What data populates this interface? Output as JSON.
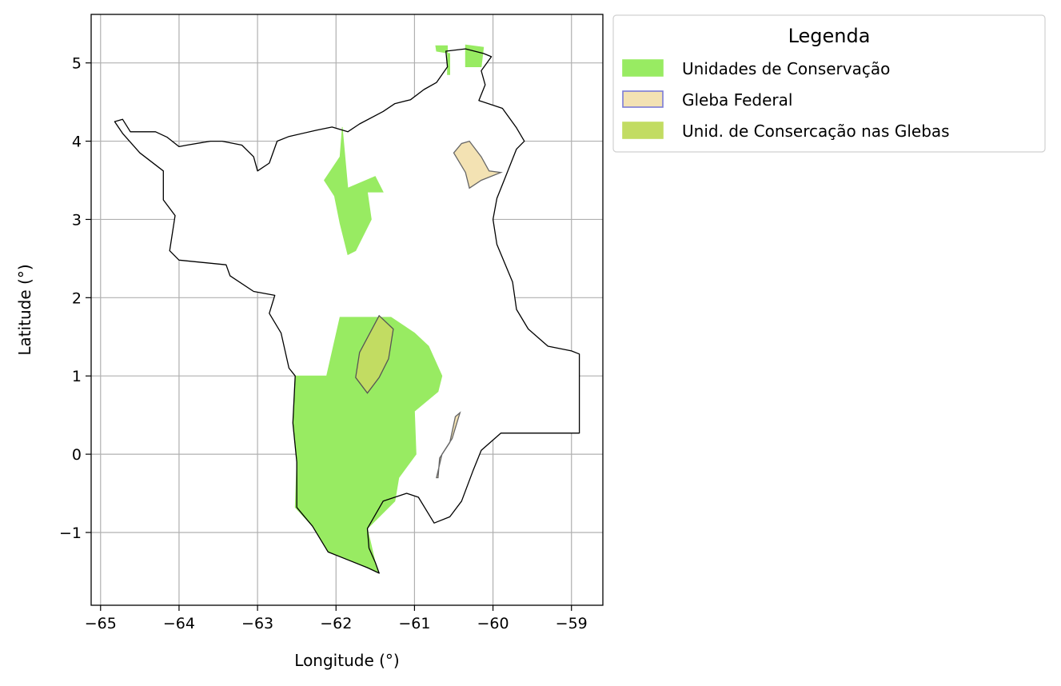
{
  "chart_data": {
    "type": "map",
    "xlabel": "Longitude (°)",
    "ylabel": "Latitude (°)",
    "xlim": [
      -65.12,
      -58.6
    ],
    "ylim": [
      -1.93,
      5.62
    ],
    "xticks": [
      -65,
      -64,
      -63,
      -62,
      -61,
      -60,
      -59
    ],
    "yticks": [
      -1,
      0,
      1,
      2,
      3,
      4,
      5
    ],
    "grid": true,
    "legend": {
      "title": "Legenda",
      "placement": "outside-upper-right",
      "entries": [
        {
          "label": "Unidades de Conservação",
          "fill": "#98eb62",
          "edge": "#98eb62"
        },
        {
          "label": "Gleba Federal",
          "fill": "#f3e2b3",
          "edge": "#7b7bd6"
        },
        {
          "label": "Unid. de Consercação nas Glebas",
          "fill": "#c2dc62",
          "edge": "#c2dc62"
        }
      ]
    },
    "layers": {
      "state_outline": [
        [
          -64.82,
          4.25
        ],
        [
          -64.72,
          4.28
        ],
        [
          -64.62,
          4.12
        ],
        [
          -64.3,
          4.12
        ],
        [
          -64.15,
          4.05
        ],
        [
          -64.0,
          3.93
        ],
        [
          -63.9,
          3.95
        ],
        [
          -63.6,
          4.0
        ],
        [
          -63.45,
          4.0
        ],
        [
          -63.2,
          3.95
        ],
        [
          -63.05,
          3.8
        ],
        [
          -63.0,
          3.62
        ],
        [
          -62.85,
          3.72
        ],
        [
          -62.75,
          4.0
        ],
        [
          -62.6,
          4.06
        ],
        [
          -62.25,
          4.14
        ],
        [
          -62.05,
          4.18
        ],
        [
          -61.85,
          4.12
        ],
        [
          -61.7,
          4.22
        ],
        [
          -61.4,
          4.38
        ],
        [
          -61.25,
          4.48
        ],
        [
          -61.05,
          4.53
        ],
        [
          -60.88,
          4.66
        ],
        [
          -60.72,
          4.75
        ],
        [
          -60.58,
          4.95
        ],
        [
          -60.6,
          5.15
        ],
        [
          -60.35,
          5.18
        ],
        [
          -60.12,
          5.12
        ],
        [
          -60.02,
          5.08
        ],
        [
          -60.15,
          4.9
        ],
        [
          -60.1,
          4.72
        ],
        [
          -60.18,
          4.52
        ],
        [
          -59.88,
          4.42
        ],
        [
          -59.7,
          4.17
        ],
        [
          -59.6,
          4.0
        ],
        [
          -59.7,
          3.9
        ],
        [
          -59.85,
          3.52
        ],
        [
          -59.95,
          3.27
        ],
        [
          -60.0,
          3.0
        ],
        [
          -59.95,
          2.68
        ],
        [
          -59.75,
          2.2
        ],
        [
          -59.7,
          1.85
        ],
        [
          -59.55,
          1.6
        ],
        [
          -59.3,
          1.38
        ],
        [
          -59.0,
          1.32
        ],
        [
          -58.9,
          1.28
        ],
        [
          -58.9,
          0.27
        ],
        [
          -59.9,
          0.27
        ],
        [
          -60.15,
          0.05
        ],
        [
          -60.25,
          -0.2
        ],
        [
          -60.4,
          -0.6
        ],
        [
          -60.55,
          -0.8
        ],
        [
          -60.75,
          -0.88
        ],
        [
          -60.95,
          -0.55
        ],
        [
          -61.1,
          -0.5
        ],
        [
          -61.4,
          -0.6
        ],
        [
          -61.6,
          -0.95
        ],
        [
          -61.58,
          -1.2
        ],
        [
          -61.5,
          -1.38
        ],
        [
          -61.45,
          -1.52
        ],
        [
          -61.6,
          -1.45
        ],
        [
          -61.85,
          -1.35
        ],
        [
          -62.1,
          -1.25
        ],
        [
          -62.3,
          -0.92
        ],
        [
          -62.5,
          -0.68
        ],
        [
          -62.5,
          -0.1
        ],
        [
          -62.55,
          0.4
        ],
        [
          -62.52,
          1.0
        ],
        [
          -62.6,
          1.1
        ],
        [
          -62.7,
          1.55
        ],
        [
          -62.85,
          1.8
        ],
        [
          -62.78,
          2.03
        ],
        [
          -63.05,
          2.08
        ],
        [
          -63.35,
          2.28
        ],
        [
          -63.4,
          2.42
        ],
        [
          -64.0,
          2.48
        ],
        [
          -64.12,
          2.6
        ],
        [
          -64.05,
          3.05
        ],
        [
          -64.2,
          3.25
        ],
        [
          -64.2,
          3.62
        ],
        [
          -64.5,
          3.85
        ],
        [
          -64.72,
          4.1
        ],
        [
          -64.82,
          4.25
        ]
      ],
      "uc_north_1": [
        [
          -60.73,
          5.22
        ],
        [
          -60.58,
          5.22
        ],
        [
          -60.58,
          4.85
        ],
        [
          -60.55,
          4.85
        ],
        [
          -60.55,
          5.12
        ],
        [
          -60.72,
          5.15
        ]
      ],
      "uc_north_2": [
        [
          -60.35,
          5.23
        ],
        [
          -60.12,
          5.2
        ],
        [
          -60.15,
          4.95
        ],
        [
          -60.35,
          4.95
        ]
      ],
      "uc_north_3": [
        [
          -61.92,
          4.18
        ],
        [
          -61.95,
          3.8
        ],
        [
          -62.15,
          3.5
        ],
        [
          -62.02,
          3.3
        ],
        [
          -61.95,
          2.95
        ],
        [
          -61.85,
          2.55
        ],
        [
          -61.75,
          2.6
        ],
        [
          -61.55,
          3.0
        ],
        [
          -61.6,
          3.35
        ],
        [
          -61.4,
          3.35
        ],
        [
          -61.5,
          3.55
        ],
        [
          -61.85,
          3.4
        ]
      ],
      "uc_south": [
        [
          -61.95,
          1.75
        ],
        [
          -61.3,
          1.75
        ],
        [
          -61.0,
          1.55
        ],
        [
          -60.82,
          1.38
        ],
        [
          -60.65,
          1.0
        ],
        [
          -60.7,
          0.8
        ],
        [
          -61.0,
          0.55
        ],
        [
          -60.98,
          0.0
        ],
        [
          -61.2,
          -0.3
        ],
        [
          -61.25,
          -0.6
        ],
        [
          -61.6,
          -0.95
        ],
        [
          -61.5,
          -1.38
        ],
        [
          -61.45,
          -1.52
        ],
        [
          -61.6,
          -1.45
        ],
        [
          -61.85,
          -1.35
        ],
        [
          -62.1,
          -1.25
        ],
        [
          -62.3,
          -0.92
        ],
        [
          -62.52,
          -0.68
        ],
        [
          -62.5,
          -0.1
        ],
        [
          -62.55,
          0.4
        ],
        [
          -62.52,
          1.0
        ],
        [
          -62.12,
          1.0
        ]
      ],
      "gleba_1": [
        [
          -61.45,
          1.77
        ],
        [
          -61.27,
          1.6
        ],
        [
          -61.33,
          1.22
        ],
        [
          -61.45,
          0.98
        ],
        [
          -61.6,
          0.78
        ],
        [
          -61.75,
          0.98
        ],
        [
          -61.7,
          1.3
        ]
      ],
      "gleba_2": [
        [
          -60.3,
          4.0
        ],
        [
          -60.15,
          3.8
        ],
        [
          -60.05,
          3.62
        ],
        [
          -59.9,
          3.6
        ],
        [
          -60.15,
          3.5
        ],
        [
          -60.3,
          3.4
        ],
        [
          -60.35,
          3.6
        ],
        [
          -60.5,
          3.85
        ],
        [
          -60.4,
          3.97
        ]
      ],
      "gleba_3": [
        [
          -60.42,
          0.53
        ],
        [
          -60.52,
          0.2
        ],
        [
          -60.65,
          0.0
        ],
        [
          -60.72,
          -0.3
        ],
        [
          -60.7,
          -0.3
        ],
        [
          -60.68,
          -0.05
        ],
        [
          -60.55,
          0.15
        ],
        [
          -60.48,
          0.48
        ]
      ]
    }
  }
}
